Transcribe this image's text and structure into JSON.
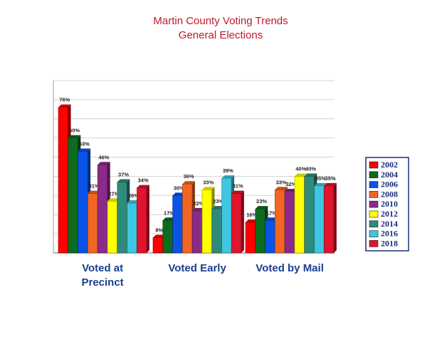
{
  "chart_data": {
    "type": "bar",
    "title": "Martin County Voting Trends",
    "subtitle": "General Elections",
    "categories": [
      "Voted at\nPrecinct",
      "Voted Early",
      "Voted by Mail"
    ],
    "series": [
      {
        "name": "2002",
        "color": "#ff0000",
        "values": [
          76,
          8,
          16
        ],
        "labels": [
          "76%",
          "8%",
          "16%"
        ]
      },
      {
        "name": "2004",
        "color": "#0d6b1e",
        "values": [
          60,
          17,
          23
        ],
        "labels": [
          "60%",
          "17%",
          "23%"
        ]
      },
      {
        "name": "2006",
        "color": "#0b52e6",
        "values": [
          53,
          30,
          17
        ],
        "labels": [
          "53%",
          "30%",
          "17%"
        ]
      },
      {
        "name": "2008",
        "color": "#f26522",
        "values": [
          31,
          36,
          33
        ],
        "labels": [
          "31%",
          "36%",
          "33%"
        ]
      },
      {
        "name": "2010",
        "color": "#8b2a8a",
        "values": [
          46,
          22,
          32
        ],
        "labels": [
          "46%",
          "22%",
          "32%"
        ]
      },
      {
        "name": "2012",
        "color": "#ffff00",
        "values": [
          27,
          33,
          40
        ],
        "labels": [
          "27%",
          "33%",
          "40%"
        ]
      },
      {
        "name": "2014",
        "color": "#2e8b7a",
        "values": [
          37,
          23,
          40
        ],
        "labels": [
          "37%",
          "23%",
          "40%"
        ]
      },
      {
        "name": "2016",
        "color": "#3fc6e0",
        "values": [
          26,
          39,
          35
        ],
        "labels": [
          "26%",
          "39%",
          "35%"
        ]
      },
      {
        "name": "2018",
        "color": "#e0142c",
        "values": [
          34,
          31,
          35
        ],
        "labels": [
          "34%",
          "31%",
          "35%"
        ]
      }
    ],
    "ylim": [
      0,
      90
    ],
    "grid": true,
    "legend_position": "right"
  }
}
